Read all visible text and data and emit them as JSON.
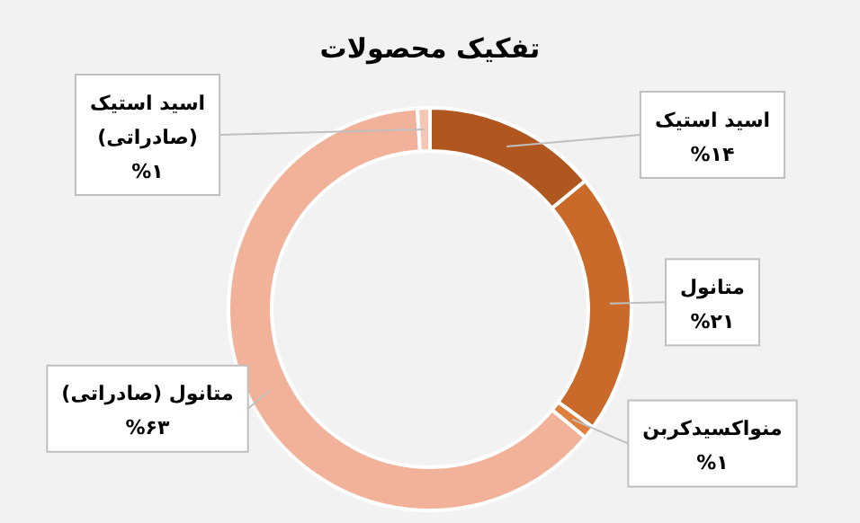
{
  "chart_data": {
    "type": "donut",
    "title": "تفکیک محصولات",
    "categories": [
      "اسید استیک",
      "متانول",
      "منواکسیدکربن",
      "متانول (صادراتی)",
      "اسید استیک (صادراتی)"
    ],
    "values": [
      14,
      21,
      1,
      63,
      1
    ],
    "value_labels": [
      "%۱۴",
      "%۲۱",
      "%۱",
      "%۶۳",
      "%۱"
    ],
    "colors": [
      "#b0561f",
      "#c96a2a",
      "#e07f3a",
      "#f2b299",
      "#f5c6b4"
    ],
    "legend": false
  }
}
